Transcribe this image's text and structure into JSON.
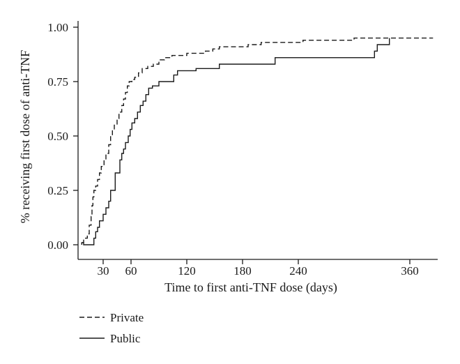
{
  "chart_data": {
    "type": "line",
    "xlabel": "Time to first anti-TNF dose (days)",
    "ylabel": "% receiving first dose of anti-TNF",
    "xlim": [
      0,
      390
    ],
    "ylim": [
      0,
      1
    ],
    "x_ticks": [
      30,
      60,
      120,
      180,
      240,
      360
    ],
    "y_ticks": [
      0.0,
      0.25,
      0.5,
      0.75,
      1.0
    ],
    "x_tick_labels": [
      "30",
      "60",
      "120",
      "180",
      "240",
      "360"
    ],
    "y_tick_labels": [
      "0.00",
      "0.25",
      "0.50",
      "0.75",
      "1.00"
    ],
    "legend_position": "bottom-left",
    "grid": false,
    "step": true,
    "series": [
      {
        "name": "Private",
        "style": "dashed",
        "color": "#1a1a1a",
        "points": [
          [
            7,
            0.01
          ],
          [
            9,
            0.03
          ],
          [
            13,
            0.05
          ],
          [
            15,
            0.09
          ],
          [
            17,
            0.13
          ],
          [
            18,
            0.18
          ],
          [
            19,
            0.22
          ],
          [
            20,
            0.25
          ],
          [
            22,
            0.27
          ],
          [
            24,
            0.3
          ],
          [
            26,
            0.33
          ],
          [
            28,
            0.36
          ],
          [
            31,
            0.39
          ],
          [
            33,
            0.42
          ],
          [
            36,
            0.46
          ],
          [
            38,
            0.5
          ],
          [
            40,
            0.53
          ],
          [
            42,
            0.55
          ],
          [
            45,
            0.58
          ],
          [
            47,
            0.61
          ],
          [
            50,
            0.64
          ],
          [
            52,
            0.67
          ],
          [
            54,
            0.7
          ],
          [
            56,
            0.73
          ],
          [
            58,
            0.75
          ],
          [
            61,
            0.76
          ],
          [
            64,
            0.77
          ],
          [
            68,
            0.79
          ],
          [
            72,
            0.81
          ],
          [
            78,
            0.82
          ],
          [
            84,
            0.83
          ],
          [
            90,
            0.85
          ],
          [
            96,
            0.86
          ],
          [
            104,
            0.87
          ],
          [
            112,
            0.87
          ],
          [
            120,
            0.88
          ],
          [
            130,
            0.88
          ],
          [
            140,
            0.89
          ],
          [
            148,
            0.9
          ],
          [
            155,
            0.91
          ],
          [
            162,
            0.91
          ],
          [
            170,
            0.91
          ],
          [
            186,
            0.92
          ],
          [
            200,
            0.93
          ],
          [
            220,
            0.93
          ],
          [
            245,
            0.94
          ],
          [
            270,
            0.94
          ],
          [
            300,
            0.95
          ],
          [
            320,
            0.95
          ],
          [
            385,
            0.95
          ]
        ]
      },
      {
        "name": "Public",
        "style": "solid",
        "color": "#1a1a1a",
        "points": [
          [
            7,
            0.0
          ],
          [
            7,
            0.01
          ],
          [
            9,
            0.0
          ],
          [
            20,
            0.0
          ],
          [
            20,
            0.03
          ],
          [
            22,
            0.06
          ],
          [
            24,
            0.08
          ],
          [
            26,
            0.11
          ],
          [
            30,
            0.14
          ],
          [
            33,
            0.17
          ],
          [
            36,
            0.2
          ],
          [
            38,
            0.25
          ],
          [
            43,
            0.33
          ],
          [
            48,
            0.39
          ],
          [
            50,
            0.42
          ],
          [
            52,
            0.44
          ],
          [
            54,
            0.47
          ],
          [
            57,
            0.5
          ],
          [
            59,
            0.53
          ],
          [
            61,
            0.56
          ],
          [
            64,
            0.58
          ],
          [
            67,
            0.61
          ],
          [
            70,
            0.64
          ],
          [
            73,
            0.66
          ],
          [
            76,
            0.69
          ],
          [
            79,
            0.72
          ],
          [
            83,
            0.73
          ],
          [
            90,
            0.75
          ],
          [
            100,
            0.75
          ],
          [
            106,
            0.78
          ],
          [
            110,
            0.8
          ],
          [
            130,
            0.81
          ],
          [
            150,
            0.81
          ],
          [
            155,
            0.83
          ],
          [
            215,
            0.86
          ],
          [
            320,
            0.86
          ],
          [
            322,
            0.89
          ],
          [
            325,
            0.92
          ],
          [
            338,
            0.92
          ],
          [
            338,
            0.95
          ]
        ]
      }
    ]
  }
}
